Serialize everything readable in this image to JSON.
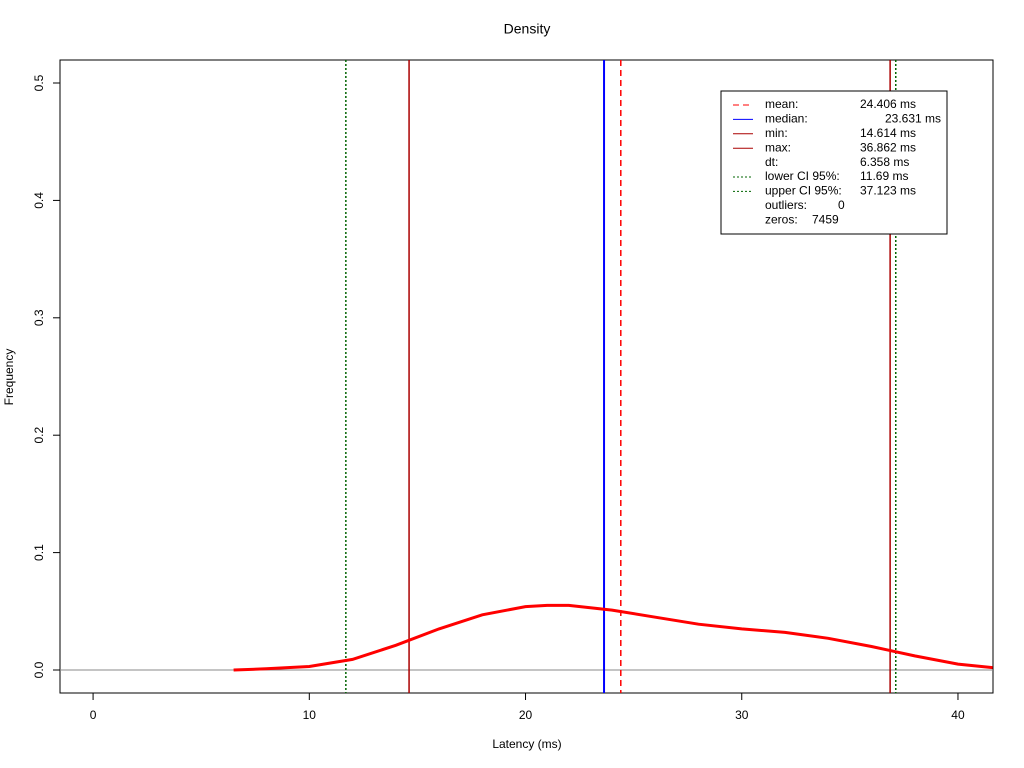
{
  "chart_data": {
    "type": "density",
    "title": "Density",
    "xlabel": "Latency (ms)",
    "ylabel": "Frequency",
    "x": [
      6.5,
      8,
      10,
      12,
      14,
      16,
      18,
      20,
      21,
      22,
      24,
      26,
      28,
      30,
      32,
      34,
      36,
      37,
      38,
      40,
      41.6
    ],
    "values": [
      0.0,
      0.001,
      0.003,
      0.009,
      0.021,
      0.035,
      0.047,
      0.054,
      0.055,
      0.055,
      0.051,
      0.045,
      0.039,
      0.035,
      0.032,
      0.027,
      0.02,
      0.016,
      0.012,
      0.005,
      0.002
    ],
    "color": "#ff0000",
    "xlim": [
      -1.53,
      41.62
    ],
    "ylim": [
      -0.0196,
      0.5196
    ],
    "xticks": [
      0,
      10,
      20,
      30,
      40
    ],
    "yticks": [
      {
        "value": 0,
        "label": "0.0"
      },
      0.1,
      0.2,
      0.3,
      0.4,
      0.5
    ],
    "hline": 0,
    "vlines": [
      {
        "name": "mean",
        "value": 24.406,
        "color": "#ff0000",
        "dash": "dashed"
      },
      {
        "name": "median",
        "value": 23.631,
        "color": "#0000ff",
        "dash": "solid"
      },
      {
        "name": "min",
        "value": 14.614,
        "color": "#aa0000",
        "dash": "solid"
      },
      {
        "name": "max",
        "value": 36.862,
        "color": "#aa0000",
        "dash": "solid"
      },
      {
        "name": "lower CI 95%",
        "value": 11.69,
        "color": "#006400",
        "dash": "dotted"
      },
      {
        "name": "upper CI 95%",
        "value": 37.123,
        "color": "#006400",
        "dash": "dotted"
      }
    ],
    "legend": [
      {
        "label": "mean:",
        "text": "24.406 ms"
      },
      {
        "label": "median:",
        "text": "23.631 ms"
      },
      {
        "label": "min:",
        "text": "14.614 ms"
      },
      {
        "label": "max:",
        "text": "36.862 ms"
      },
      {
        "label": "dt:",
        "text": "6.358 ms"
      },
      {
        "label": "lower CI 95%:",
        "text": "11.69 ms"
      },
      {
        "label": "upper CI 95%:",
        "text": "37.123 ms"
      },
      {
        "label": "outliers:",
        "text": "0"
      },
      {
        "label": "zeros:",
        "text": "7459"
      }
    ]
  }
}
